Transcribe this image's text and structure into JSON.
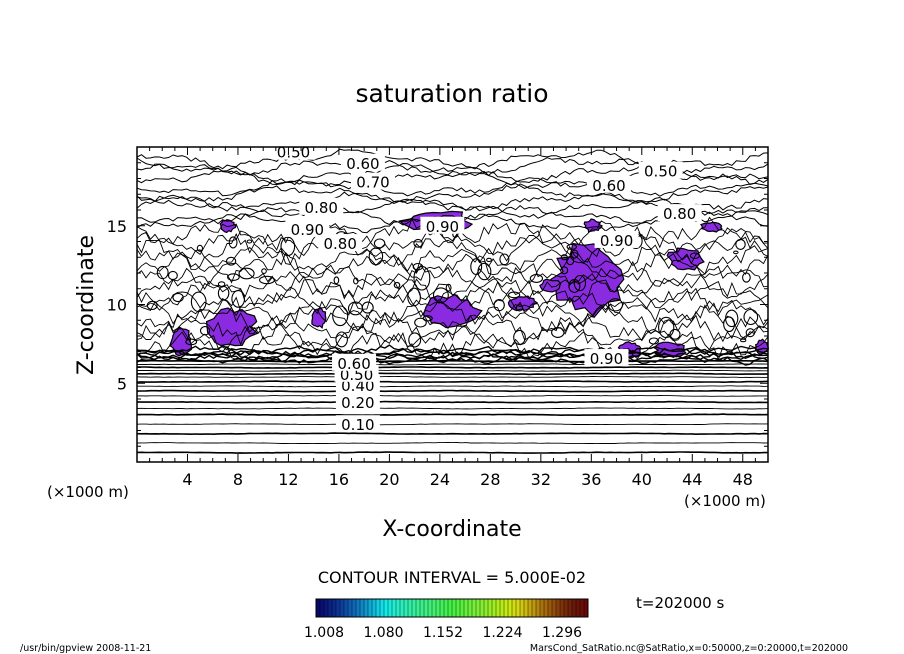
{
  "chart_data": {
    "type": "contour",
    "title": "saturation ratio",
    "xlabel": "X-coordinate",
    "ylabel": "Z-coordinate",
    "x_unit_label": "(×1000 m)",
    "z_unit_label": "(×1000 m)",
    "xlim": [
      0,
      50
    ],
    "ylim": [
      0,
      20
    ],
    "x_ticks": [
      4,
      8,
      12,
      16,
      20,
      24,
      28,
      32,
      36,
      40,
      44,
      48
    ],
    "y_ticks": [
      5,
      10,
      15
    ],
    "contour_interval_text": "CONTOUR INTERVAL = 5.000E-02",
    "time_text": "t=202000 s",
    "colorbar_labels": [
      "1.008",
      "1.080",
      "1.152",
      "1.224",
      "1.296"
    ],
    "shade_color": "#8a2be2",
    "contour_labels": [
      {
        "text": "0.10",
        "x": 17.5,
        "z": 2.4
      },
      {
        "text": "0.20",
        "x": 17.5,
        "z": 3.8
      },
      {
        "text": "0.40",
        "x": 17.5,
        "z": 4.9
      },
      {
        "text": "0.50",
        "x": 17.4,
        "z": 5.6
      },
      {
        "text": "0.60",
        "x": 17.2,
        "z": 6.3
      },
      {
        "text": "0.90",
        "x": 37.2,
        "z": 6.6
      },
      {
        "text": "0.90",
        "x": 38.0,
        "z": 14.1
      },
      {
        "text": "0.90",
        "x": 24.2,
        "z": 15.0
      },
      {
        "text": "0.80",
        "x": 14.6,
        "z": 16.2
      },
      {
        "text": "0.80",
        "x": 43.0,
        "z": 15.8
      },
      {
        "text": "0.80",
        "x": 16.1,
        "z": 13.9
      },
      {
        "text": "0.60",
        "x": 37.4,
        "z": 17.6
      },
      {
        "text": "0.60",
        "x": 17.9,
        "z": 19.0
      },
      {
        "text": "0.70",
        "x": 18.7,
        "z": 17.8
      },
      {
        "text": "0.50",
        "x": 12.4,
        "z": 19.7
      },
      {
        "text": "0.50",
        "x": 41.5,
        "z": 18.5
      },
      {
        "text": "0.90",
        "x": 13.5,
        "z": 14.8
      }
    ],
    "shaded_regions_supersaturated": [
      {
        "x": [
          5.5,
          9.5
        ],
        "z": [
          7.3,
          9.8
        ]
      },
      {
        "x": [
          2.6,
          4.4
        ],
        "z": [
          6.8,
          8.5
        ]
      },
      {
        "x": [
          13.8,
          15.0
        ],
        "z": [
          8.5,
          9.8
        ]
      },
      {
        "x": [
          22.5,
          27.2
        ],
        "z": [
          8.6,
          10.6
        ]
      },
      {
        "x": [
          29.5,
          31.6
        ],
        "z": [
          9.6,
          10.6
        ]
      },
      {
        "x": [
          33.0,
          38.6
        ],
        "z": [
          9.3,
          13.9
        ]
      },
      {
        "x": [
          41.0,
          43.5
        ],
        "z": [
          6.6,
          7.6
        ]
      },
      {
        "x": [
          38.2,
          40.0
        ],
        "z": [
          6.6,
          7.6
        ]
      },
      {
        "x": [
          49.0,
          50.0
        ],
        "z": [
          6.8,
          7.8
        ]
      },
      {
        "x": [
          21.0,
          26.6
        ],
        "z": [
          14.6,
          16.0
        ]
      },
      {
        "x": [
          42.0,
          45.0
        ],
        "z": [
          12.2,
          13.6
        ]
      },
      {
        "x": [
          44.6,
          46.4
        ],
        "z": [
          14.6,
          15.2
        ]
      },
      {
        "x": [
          32.0,
          33.6
        ],
        "z": [
          10.8,
          11.6
        ]
      },
      {
        "x": [
          6.6,
          7.8
        ],
        "z": [
          14.6,
          15.4
        ]
      },
      {
        "x": [
          35.4,
          36.8
        ],
        "z": [
          14.6,
          15.4
        ]
      }
    ]
  },
  "footer": {
    "left": "/usr/bin/gpview   2008-11-21",
    "right": "MarsCond_SatRatio.nc@SatRatio,x=0:50000,z=0:20000,t=202000"
  }
}
